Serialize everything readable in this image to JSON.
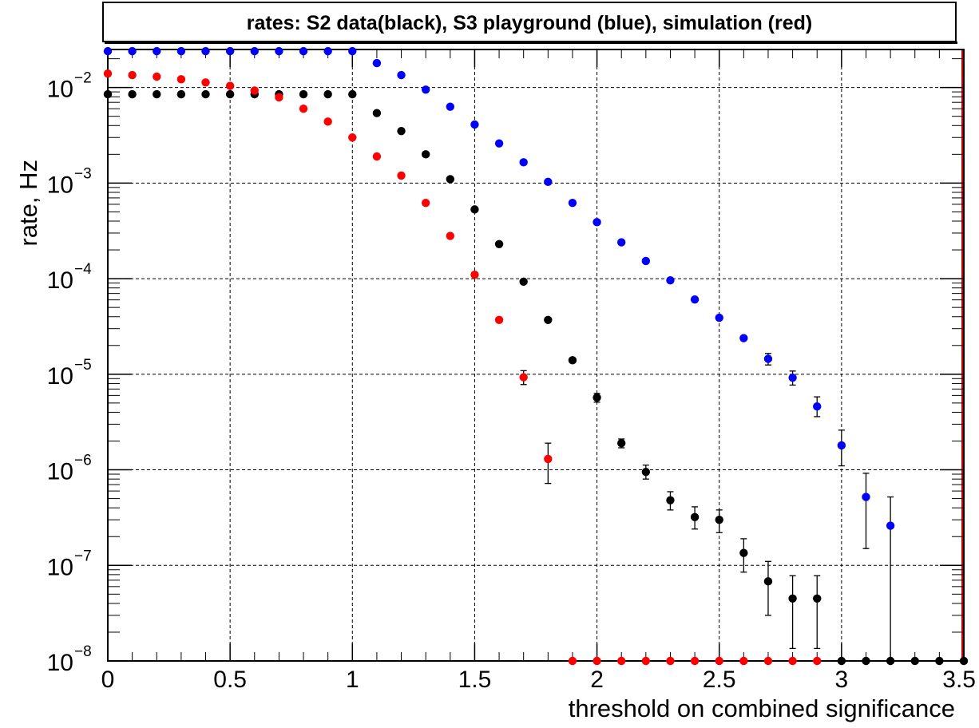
{
  "chart_data": {
    "type": "scatter",
    "title": "rates: S2 data(black), S3 playground (blue), simulation (red)",
    "xlabel": "threshold on combined significance",
    "ylabel": "rate, Hz",
    "xlim": [
      0,
      3.5
    ],
    "ylim": [
      1e-08,
      0.025
    ],
    "yscale": "log",
    "grid": true,
    "x_ticks": [
      "0",
      "0.5",
      "1",
      "1.5",
      "2",
      "2.5",
      "3",
      "3.5"
    ],
    "y_ticks": [
      {
        "base": "10",
        "exp": "-8"
      },
      {
        "base": "10",
        "exp": "-7"
      },
      {
        "base": "10",
        "exp": "-6"
      },
      {
        "base": "10",
        "exp": "-5"
      },
      {
        "base": "10",
        "exp": "-4"
      },
      {
        "base": "10",
        "exp": "-3"
      },
      {
        "base": "10",
        "exp": "-2"
      }
    ],
    "series": [
      {
        "color": "#0000ff",
        "points": [
          {
            "x": 0.0,
            "y": 0.024
          },
          {
            "x": 0.1,
            "y": 0.024
          },
          {
            "x": 0.2,
            "y": 0.024
          },
          {
            "x": 0.3,
            "y": 0.024
          },
          {
            "x": 0.4,
            "y": 0.024
          },
          {
            "x": 0.5,
            "y": 0.024
          },
          {
            "x": 0.6,
            "y": 0.024
          },
          {
            "x": 0.7,
            "y": 0.024
          },
          {
            "x": 0.8,
            "y": 0.024
          },
          {
            "x": 0.9,
            "y": 0.024
          },
          {
            "x": 1.0,
            "y": 0.024
          },
          {
            "x": 1.1,
            "y": 0.018
          },
          {
            "x": 1.2,
            "y": 0.0135
          },
          {
            "x": 1.3,
            "y": 0.0095
          },
          {
            "x": 1.4,
            "y": 0.0063
          },
          {
            "x": 1.5,
            "y": 0.0041
          },
          {
            "x": 1.6,
            "y": 0.0026
          },
          {
            "x": 1.7,
            "y": 0.00165
          },
          {
            "x": 1.8,
            "y": 0.00103
          },
          {
            "x": 1.9,
            "y": 0.00062
          },
          {
            "x": 2.0,
            "y": 0.00039
          },
          {
            "x": 2.1,
            "y": 0.00024
          },
          {
            "x": 2.2,
            "y": 0.000153
          },
          {
            "x": 2.3,
            "y": 9.6e-05
          },
          {
            "x": 2.4,
            "y": 6.06e-05
          },
          {
            "x": 2.5,
            "y": 3.9e-05
          },
          {
            "x": 2.6,
            "y": 2.39e-05
          },
          {
            "x": 2.7,
            "y": 1.45e-05,
            "err_lo": 1.25e-05,
            "err_hi": 1.65e-05
          },
          {
            "x": 2.8,
            "y": 9.2e-06,
            "err_lo": 7.7e-06,
            "err_hi": 1.08e-05
          },
          {
            "x": 2.9,
            "y": 4.6e-06,
            "err_lo": 3.6e-06,
            "err_hi": 5.8e-06
          },
          {
            "x": 3.0,
            "y": 1.8e-06,
            "err_lo": 1.1e-06,
            "err_hi": 2.6e-06
          },
          {
            "x": 3.1,
            "y": 5.2e-07,
            "err_lo": 1.5e-07,
            "err_hi": 9.2e-07
          },
          {
            "x": 3.2,
            "y": 2.6e-07,
            "err_lo": 1e-08,
            "err_hi": 5.2e-07
          }
        ]
      },
      {
        "color": "#000000",
        "points": [
          {
            "x": 0.0,
            "y": 0.0085
          },
          {
            "x": 0.1,
            "y": 0.0085
          },
          {
            "x": 0.2,
            "y": 0.0085
          },
          {
            "x": 0.3,
            "y": 0.0085
          },
          {
            "x": 0.4,
            "y": 0.0085
          },
          {
            "x": 0.5,
            "y": 0.0085
          },
          {
            "x": 0.6,
            "y": 0.0085
          },
          {
            "x": 0.7,
            "y": 0.0085
          },
          {
            "x": 0.8,
            "y": 0.0085
          },
          {
            "x": 0.9,
            "y": 0.0085
          },
          {
            "x": 1.0,
            "y": 0.0085
          },
          {
            "x": 1.1,
            "y": 0.0054
          },
          {
            "x": 1.2,
            "y": 0.0035
          },
          {
            "x": 1.3,
            "y": 0.002
          },
          {
            "x": 1.4,
            "y": 0.0011
          },
          {
            "x": 1.5,
            "y": 0.00053
          },
          {
            "x": 1.6,
            "y": 0.00023
          },
          {
            "x": 1.7,
            "y": 9.3e-05
          },
          {
            "x": 1.8,
            "y": 3.7e-05
          },
          {
            "x": 1.9,
            "y": 1.4e-05
          },
          {
            "x": 2.0,
            "y": 5.7e-06,
            "err_lo": 5.1e-06,
            "err_hi": 6.3e-06
          },
          {
            "x": 2.1,
            "y": 1.9e-06,
            "err_lo": 1.7e-06,
            "err_hi": 2.1e-06
          },
          {
            "x": 2.2,
            "y": 9.5e-07,
            "err_lo": 8e-07,
            "err_hi": 1.12e-06
          },
          {
            "x": 2.3,
            "y": 4.8e-07,
            "err_lo": 3.8e-07,
            "err_hi": 5.9e-07
          },
          {
            "x": 2.4,
            "y": 3.2e-07,
            "err_lo": 2.4e-07,
            "err_hi": 4.1e-07
          },
          {
            "x": 2.5,
            "y": 3e-07,
            "err_lo": 2.2e-07,
            "err_hi": 3.8e-07
          },
          {
            "x": 2.6,
            "y": 1.35e-07,
            "err_lo": 8.5e-08,
            "err_hi": 1.9e-07
          },
          {
            "x": 2.7,
            "y": 6.8e-08,
            "err_lo": 3e-08,
            "err_hi": 1.1e-07
          },
          {
            "x": 2.8,
            "y": 4.5e-08,
            "err_lo": 1.35e-08,
            "err_hi": 7.8e-08
          },
          {
            "x": 2.9,
            "y": 4.5e-08,
            "err_lo": 1.35e-08,
            "err_hi": 7.8e-08
          },
          {
            "x": 3.0,
            "y": 1e-08
          },
          {
            "x": 3.1,
            "y": 1e-08
          },
          {
            "x": 3.2,
            "y": 1e-08
          },
          {
            "x": 3.3,
            "y": 1e-08
          },
          {
            "x": 3.4,
            "y": 1e-08
          },
          {
            "x": 3.5,
            "y": 1e-08
          }
        ]
      },
      {
        "color": "#ff0000",
        "points": [
          {
            "x": 0.0,
            "y": 0.014
          },
          {
            "x": 0.1,
            "y": 0.0135
          },
          {
            "x": 0.2,
            "y": 0.013
          },
          {
            "x": 0.3,
            "y": 0.0122
          },
          {
            "x": 0.4,
            "y": 0.0113
          },
          {
            "x": 0.5,
            "y": 0.0104
          },
          {
            "x": 0.6,
            "y": 0.0093
          },
          {
            "x": 0.7,
            "y": 0.0079
          },
          {
            "x": 0.8,
            "y": 0.006
          },
          {
            "x": 0.9,
            "y": 0.0044
          },
          {
            "x": 1.0,
            "y": 0.003
          },
          {
            "x": 1.1,
            "y": 0.0019
          },
          {
            "x": 1.2,
            "y": 0.0012
          },
          {
            "x": 1.3,
            "y": 0.00062
          },
          {
            "x": 1.4,
            "y": 0.00028
          },
          {
            "x": 1.5,
            "y": 0.00011
          },
          {
            "x": 1.6,
            "y": 3.7e-05
          },
          {
            "x": 1.7,
            "y": 9.3e-06,
            "err_lo": 7.8e-06,
            "err_hi": 1.09e-05
          },
          {
            "x": 1.8,
            "y": 1.3e-06,
            "err_lo": 7.2e-07,
            "err_hi": 1.9e-06
          },
          {
            "x": 1.9,
            "y": 1e-08
          },
          {
            "x": 2.0,
            "y": 1e-08
          },
          {
            "x": 2.1,
            "y": 1e-08
          },
          {
            "x": 2.2,
            "y": 1e-08
          },
          {
            "x": 2.3,
            "y": 1e-08
          },
          {
            "x": 2.4,
            "y": 1e-08
          },
          {
            "x": 2.5,
            "y": 1e-08
          },
          {
            "x": 2.6,
            "y": 1e-08
          },
          {
            "x": 2.7,
            "y": 1e-08
          },
          {
            "x": 2.8,
            "y": 1e-08
          },
          {
            "x": 2.9,
            "y": 1e-08
          }
        ]
      }
    ],
    "reference_lines": [
      {
        "orientation": "horizontal",
        "y": 1e-08,
        "color": "#cc0000"
      },
      {
        "orientation": "vertical",
        "x": 3.5,
        "color": "#cc0000"
      }
    ]
  }
}
